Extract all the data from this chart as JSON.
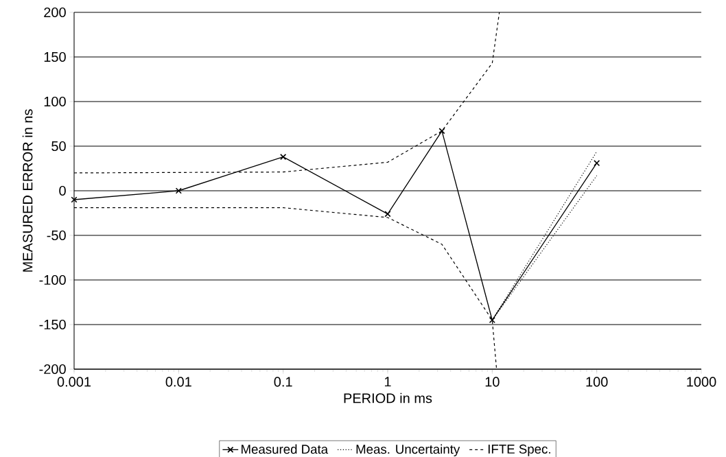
{
  "chart_data": {
    "type": "line",
    "xlabel": "PERIOD in ms",
    "ylabel": "MEASURED ERROR in ns",
    "log": "x",
    "xlim": [
      0.001,
      1000
    ],
    "xticks": [
      0.001,
      0.01,
      0.1,
      1,
      10,
      100,
      1000
    ],
    "ylim": [
      -200,
      200
    ],
    "yticks": [
      -200,
      -150,
      -100,
      -50,
      0,
      50,
      100,
      150,
      200
    ],
    "grid": "y",
    "legend": "bottom",
    "series": [
      {
        "name": "Measured Data",
        "color": "#000000",
        "marker": "cross",
        "line_style": "solid",
        "x": [
          0.001,
          0.01,
          0.1,
          1,
          3.3,
          10,
          100
        ],
        "values": [
          -10,
          0,
          38,
          -26,
          67,
          -145,
          31
        ]
      },
      {
        "name": "Meas. Uncertainty",
        "color": "#000000",
        "marker": "none",
        "line_style": "dotted",
        "x": [
          10,
          100
        ],
        "values": [
          -145,
          44
        ]
      },
      {
        "color": "#000000",
        "marker": "none",
        "line_style": "dotted",
        "x": [
          10,
          100
        ],
        "values": [
          -145,
          17
        ]
      },
      {
        "name": "IFTE Spec.",
        "color": "#000000",
        "marker": "none",
        "line_style": "dashed",
        "x": [
          0.001,
          0.1,
          1,
          3.3,
          10,
          11.7
        ],
        "values": [
          20,
          21,
          32,
          67,
          143,
          200
        ]
      },
      {
        "color": "#000000",
        "marker": "none",
        "line_style": "dashed",
        "x": [
          0.001,
          0.1,
          1,
          3.3,
          10,
          11
        ],
        "values": [
          -19,
          -19,
          -30,
          -60,
          -145,
          -200
        ]
      }
    ]
  }
}
